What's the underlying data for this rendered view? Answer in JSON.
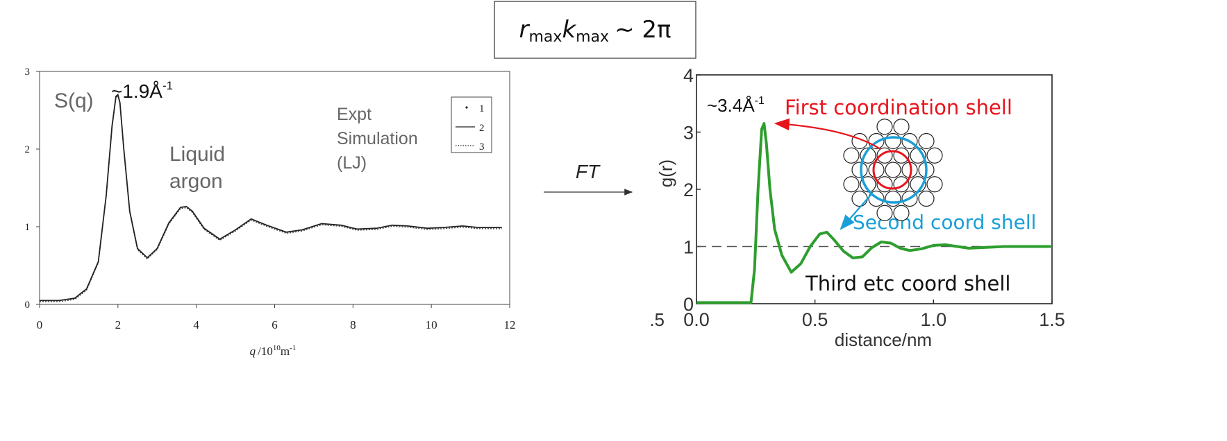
{
  "formula": {
    "r": "r",
    "k": "k",
    "sub": "max",
    "rhs": "∼ 2π"
  },
  "transform": {
    "label": "FT"
  },
  "left_chart_annotations": {
    "sq_label": "S(q)",
    "peak_main": "~1.9Å",
    "peak_sup": "-1",
    "liquid_line1": "Liquid",
    "liquid_line2": "argon",
    "expt": "Expt",
    "simulation": "Simulation",
    "lj": "(LJ)",
    "legend_items": [
      "1",
      "2",
      "3"
    ],
    "xlabel_q": "q",
    "xlabel_rest": "/10",
    "xlabel_exp": "10",
    "xlabel_unit": "m",
    "xlabel_unit_exp": "-1"
  },
  "right_chart_annotations": {
    "peak_main": "~3.4Å",
    "peak_sup": "-1",
    "first_shell": "First coordination shell",
    "second_shell": "Second coord shell",
    "third_shell": "Third etc coord shell",
    "ylabel": "g(r)",
    "xlabel": "distance/nm",
    "extra_tick": ".5"
  },
  "colors": {
    "curve_left": "#222222",
    "curve_right": "#2e9e2e",
    "first_shell": "#e8141c",
    "second_shell": "#1a9fd6",
    "reference_line": "#555555"
  },
  "chart_data": [
    {
      "type": "line",
      "title": "",
      "xlabel": "q /10^10 m^-1",
      "ylabel": "S(q)",
      "xlim": [
        0,
        12
      ],
      "ylim": [
        0,
        3
      ],
      "x_ticks": [
        0,
        2,
        4,
        6,
        8,
        10,
        12
      ],
      "y_ticks": [
        0,
        1,
        2,
        3
      ],
      "legend": {
        "position": "top-right",
        "entries": [
          "1",
          "2",
          "3"
        ]
      },
      "series": [
        {
          "name": "1",
          "x": [
            0,
            0.5,
            0.9,
            1.2,
            1.5,
            1.7,
            1.85,
            1.95,
            2.0,
            2.05,
            2.15,
            2.3,
            2.5,
            2.75,
            3.0,
            3.3,
            3.6,
            3.75,
            3.9,
            4.2,
            4.6,
            5.0,
            5.4,
            5.8,
            6.3,
            6.7,
            7.2,
            7.7,
            8.1,
            8.6,
            9.0,
            9.4,
            9.9,
            10.3,
            10.8,
            11.2,
            11.8
          ],
          "y": [
            0.05,
            0.05,
            0.08,
            0.2,
            0.55,
            1.4,
            2.3,
            2.68,
            2.7,
            2.6,
            2.0,
            1.2,
            0.72,
            0.6,
            0.72,
            1.05,
            1.25,
            1.26,
            1.2,
            0.98,
            0.84,
            0.96,
            1.1,
            1.02,
            0.93,
            0.96,
            1.04,
            1.02,
            0.97,
            0.98,
            1.02,
            1.01,
            0.98,
            0.99,
            1.01,
            0.99,
            0.99
          ]
        },
        {
          "name": "2",
          "x": [
            0,
            0.5,
            0.9,
            1.2,
            1.5,
            1.7,
            1.85,
            1.95,
            2.0,
            2.05,
            2.15,
            2.3,
            2.5,
            2.75,
            3.0,
            3.3,
            3.6,
            3.75,
            3.9,
            4.2,
            4.6,
            5.0,
            5.4,
            5.8,
            6.3,
            6.7,
            7.2,
            7.7,
            8.1,
            8.6,
            9.0,
            9.4,
            9.9,
            10.3,
            10.8,
            11.2,
            11.8
          ],
          "y": [
            0.05,
            0.05,
            0.08,
            0.2,
            0.55,
            1.4,
            2.3,
            2.68,
            2.7,
            2.6,
            2.0,
            1.2,
            0.72,
            0.6,
            0.72,
            1.05,
            1.25,
            1.26,
            1.2,
            0.98,
            0.84,
            0.96,
            1.1,
            1.02,
            0.93,
            0.96,
            1.04,
            1.02,
            0.97,
            0.98,
            1.02,
            1.01,
            0.98,
            0.99,
            1.01,
            0.99,
            0.99
          ]
        },
        {
          "name": "3",
          "x": [
            0,
            0.5,
            0.9,
            1.2,
            1.5,
            1.7,
            1.85,
            1.95,
            2.0,
            2.05,
            2.15,
            2.3,
            2.5,
            2.75,
            3.0,
            3.3,
            3.6,
            3.75,
            3.9,
            4.2,
            4.6,
            5.0,
            5.4,
            5.8,
            6.3,
            6.7,
            7.2,
            7.7,
            8.1,
            8.6,
            9.0,
            9.4,
            9.9,
            10.3,
            10.8,
            11.2,
            11.8
          ],
          "y": [
            0.05,
            0.05,
            0.08,
            0.2,
            0.55,
            1.4,
            2.3,
            2.68,
            2.7,
            2.6,
            2.0,
            1.2,
            0.72,
            0.6,
            0.72,
            1.05,
            1.25,
            1.26,
            1.2,
            0.98,
            0.84,
            0.96,
            1.1,
            1.02,
            0.93,
            0.96,
            1.04,
            1.02,
            0.97,
            0.98,
            1.02,
            1.01,
            0.98,
            0.99,
            1.01,
            0.99,
            0.99
          ]
        }
      ]
    },
    {
      "type": "line",
      "title": "",
      "xlabel": "distance/nm",
      "ylabel": "g(r)",
      "xlim": [
        0,
        1.5
      ],
      "ylim": [
        0,
        4
      ],
      "x_ticks": [
        0.0,
        0.5,
        1.0,
        1.5
      ],
      "x_tick_labels": [
        "0.0",
        "0.5",
        "1.0",
        "1.5"
      ],
      "y_ticks": [
        0,
        1,
        2,
        3,
        4
      ],
      "reference_line_y": 1,
      "series": [
        {
          "x": [
            0.0,
            0.1,
            0.2,
            0.23,
            0.245,
            0.26,
            0.275,
            0.285,
            0.295,
            0.31,
            0.33,
            0.36,
            0.4,
            0.44,
            0.48,
            0.52,
            0.55,
            0.58,
            0.62,
            0.66,
            0.7,
            0.74,
            0.78,
            0.82,
            0.86,
            0.9,
            0.95,
            1.0,
            1.05,
            1.1,
            1.15,
            1.2,
            1.3,
            1.4,
            1.5
          ],
          "y": [
            0.02,
            0.02,
            0.02,
            0.02,
            0.6,
            2.0,
            3.05,
            3.15,
            2.8,
            2.0,
            1.3,
            0.85,
            0.55,
            0.7,
            1.0,
            1.22,
            1.25,
            1.12,
            0.92,
            0.8,
            0.82,
            0.98,
            1.08,
            1.06,
            0.97,
            0.93,
            0.96,
            1.02,
            1.03,
            1.0,
            0.97,
            0.98,
            1.0,
            1.0,
            1.0
          ]
        }
      ]
    }
  ]
}
